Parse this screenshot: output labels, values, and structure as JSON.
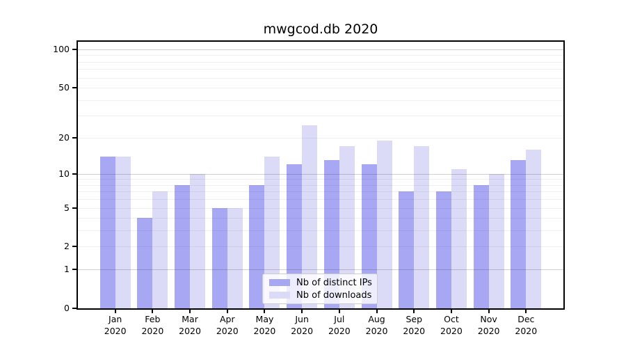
{
  "chart_data": {
    "type": "bar",
    "title": "mwgcod.db 2020",
    "categories": [
      "Jan",
      "Feb",
      "Mar",
      "Apr",
      "May",
      "Jun",
      "Jul",
      "Aug",
      "Sep",
      "Oct",
      "Nov",
      "Dec"
    ],
    "x_tick_sublabel": "2020",
    "series": [
      {
        "name": "Nb of distinct IPs",
        "color": "#a7a7f3",
        "values": [
          14,
          4,
          8,
          5,
          8,
          12,
          13,
          12,
          7,
          7,
          8,
          13
        ]
      },
      {
        "name": "Nb of downloads",
        "color": "#dbdbf7",
        "values": [
          14,
          7,
          10,
          5,
          14,
          25,
          17,
          19,
          17,
          11,
          10,
          16
        ]
      }
    ],
    "xlabel": "",
    "ylabel": "",
    "yscale": "log1p",
    "ylim": [
      0,
      115
    ],
    "yticks": [
      0,
      1,
      2,
      5,
      10,
      20,
      50,
      100
    ],
    "major_grid_values": [
      1,
      10,
      100
    ],
    "minor_grid_values": [
      2,
      3,
      4,
      5,
      6,
      7,
      8,
      9,
      20,
      30,
      40,
      50,
      60,
      70,
      80,
      90
    ],
    "grid": true,
    "grid_above_bars": true,
    "legend_position": "lower center",
    "background_color": "#ffffff",
    "spine_color": "#000000"
  }
}
